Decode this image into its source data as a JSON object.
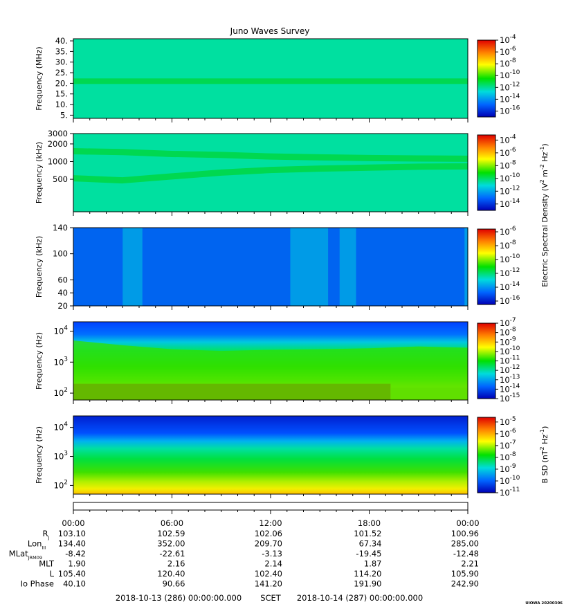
{
  "chart_data": [
    {
      "type": "heatmap",
      "title": "Juno Waves Survey",
      "ylabel": "Frequency (MHz)",
      "y_scale": "linear",
      "ylim": [
        3.5,
        41
      ],
      "yticks": [
        40,
        35,
        30,
        25,
        20,
        15,
        10,
        5
      ],
      "ytick_labels": [
        "40.",
        "35.",
        "30.",
        "25.",
        "20.",
        "15.",
        "10.",
        "5."
      ],
      "colorbar": {
        "scale": "log",
        "range_exponents": [
          -17,
          -4
        ],
        "tick_exponents": [
          -4,
          -6,
          -8,
          -10,
          -12,
          -14,
          -16
        ]
      },
      "features": [
        {
          "kind": "band",
          "y": 21,
          "intensity_exponent": -11.5
        }
      ]
    },
    {
      "type": "heatmap",
      "ylabel": "Frequency (kHz)",
      "y_scale": "log",
      "ylim": [
        140,
        3000
      ],
      "yticks": [
        3000,
        2000,
        1000,
        500
      ],
      "ytick_labels": [
        "3000",
        "2000",
        "1000",
        "500"
      ],
      "colorbar": {
        "scale": "log",
        "range_exponents": [
          -15,
          -3.2
        ],
        "tick_exponents": [
          -4,
          -6,
          -8,
          -10,
          -12,
          -14
        ]
      },
      "features": [
        {
          "kind": "band",
          "y_path": [
            1500,
            1450,
            1350,
            1300,
            1220,
            1180,
            1150,
            1130,
            1120
          ],
          "intensity_exponent": -10.5
        },
        {
          "kind": "band",
          "y_path": [
            520,
            480,
            560,
            650,
            720,
            760,
            790,
            820,
            830
          ],
          "intensity_exponent": -10.5
        }
      ]
    },
    {
      "type": "heatmap",
      "ylabel": "Frequency (kHz)",
      "y_scale": "linear",
      "ylim": [
        20,
        140
      ],
      "yticks": [
        140,
        100,
        60,
        40,
        20
      ],
      "ytick_labels": [
        "140",
        "100",
        "60",
        "40",
        "20"
      ],
      "colorbar": {
        "scale": "log",
        "range_exponents": [
          -16.5,
          -5.6
        ],
        "tick_exponents": [
          -6,
          -8,
          -10,
          -12,
          -14,
          -16
        ]
      },
      "features": [
        {
          "kind": "burst",
          "t_hours": [
            3.0,
            4.2
          ],
          "intensity_exponent": -13
        },
        {
          "kind": "burst",
          "t_hours": [
            13.2,
            15.5
          ],
          "intensity_exponent": -13
        },
        {
          "kind": "burst",
          "t_hours": [
            16.2,
            17.2
          ],
          "intensity_exponent": -13
        },
        {
          "kind": "burst",
          "t_hours": [
            23.8,
            24.0
          ],
          "intensity_exponent": -13
        }
      ]
    },
    {
      "type": "heatmap",
      "ylabel": "Frequency (Hz)",
      "y_scale": "log",
      "ylim": [
        60,
        20000
      ],
      "yticks": [
        10000,
        1000,
        100
      ],
      "ytick_labels": [
        [
          "10",
          "4"
        ],
        [
          "10",
          "3"
        ],
        [
          "10",
          "2"
        ]
      ],
      "colorbar": {
        "scale": "log",
        "range_exponents": [
          -15,
          -7
        ],
        "tick_exponents": [
          -7,
          -8,
          -9,
          -10,
          -11,
          -12,
          -13,
          -14,
          -15
        ]
      },
      "features": [
        {
          "kind": "low_band_hot",
          "y_max": 200,
          "t_hours": [
            0,
            19.3
          ],
          "intensity_exponent": -8
        },
        {
          "kind": "green_region",
          "y_max_path": [
            5000,
            3500,
            2600,
            2300,
            2500,
            2600,
            2800,
            3200,
            2900
          ],
          "intensity_exponent": -11
        }
      ]
    },
    {
      "type": "heatmap",
      "ylabel": "Frequency (Hz)",
      "y_scale": "log",
      "ylim": [
        50,
        25000
      ],
      "yticks": [
        10000,
        1000,
        100
      ],
      "ytick_labels": [
        [
          "10",
          "4"
        ],
        [
          "10",
          "3"
        ],
        [
          "10",
          "2"
        ]
      ],
      "colorbar": {
        "scale": "log",
        "range_exponents": [
          -11,
          -4.6
        ],
        "tick_exponents": [
          -5,
          -6,
          -7,
          -8,
          -9,
          -10,
          -11
        ]
      },
      "features": [
        {
          "kind": "gradient",
          "note": ""
        }
      ]
    }
  ],
  "colorbar_labels": {
    "electric": [
      "Electric Spectral Density (V",
      "2",
      " m",
      "-2",
      " Hz",
      "-1",
      ")"
    ],
    "magnetic": [
      "B SD (nT",
      "2",
      " Hz",
      "-1",
      ")"
    ]
  },
  "time_axis": {
    "hours": [
      0,
      6,
      12,
      18,
      24
    ],
    "labels": [
      "00:00",
      "06:00",
      "12:00",
      "18:00",
      "00:00"
    ]
  },
  "ephemeris": [
    {
      "label": "R",
      "sub": "J",
      "values": [
        "103.10",
        "102.59",
        "102.06",
        "101.52",
        "100.96"
      ]
    },
    {
      "label": "Lon",
      "sub": "III",
      "values": [
        "134.40",
        "352.00",
        "209.70",
        "67.34",
        "285.00"
      ]
    },
    {
      "label": "MLat",
      "sub": "JRM09",
      "values": [
        "-8.42",
        "-22.61",
        "-3.13",
        "-19.45",
        "-12.48"
      ]
    },
    {
      "label": "MLT",
      "sub": "",
      "values": [
        "1.90",
        "2.16",
        "2.14",
        "1.87",
        "2.21"
      ]
    },
    {
      "label": "L",
      "sub": "",
      "values": [
        "105.40",
        "120.40",
        "102.40",
        "114.20",
        "105.90"
      ]
    },
    {
      "label": "Io Phase",
      "sub": "",
      "values": [
        "40.10",
        "90.66",
        "141.20",
        "191.90",
        "242.90"
      ]
    }
  ],
  "footer": {
    "start": "2018-10-13 (286) 00:00:00.000",
    "frame": "SCET",
    "end": "2018-10-14 (287) 00:00:00.000"
  },
  "stamp": "UIOWA 20200306",
  "colors": {
    "background": "#ffffff",
    "axis": "#000000",
    "colormap": [
      "#0000b4",
      "#0064ff",
      "#00dcdc",
      "#00e000",
      "#ffff00",
      "#ff8000",
      "#e00000"
    ]
  }
}
